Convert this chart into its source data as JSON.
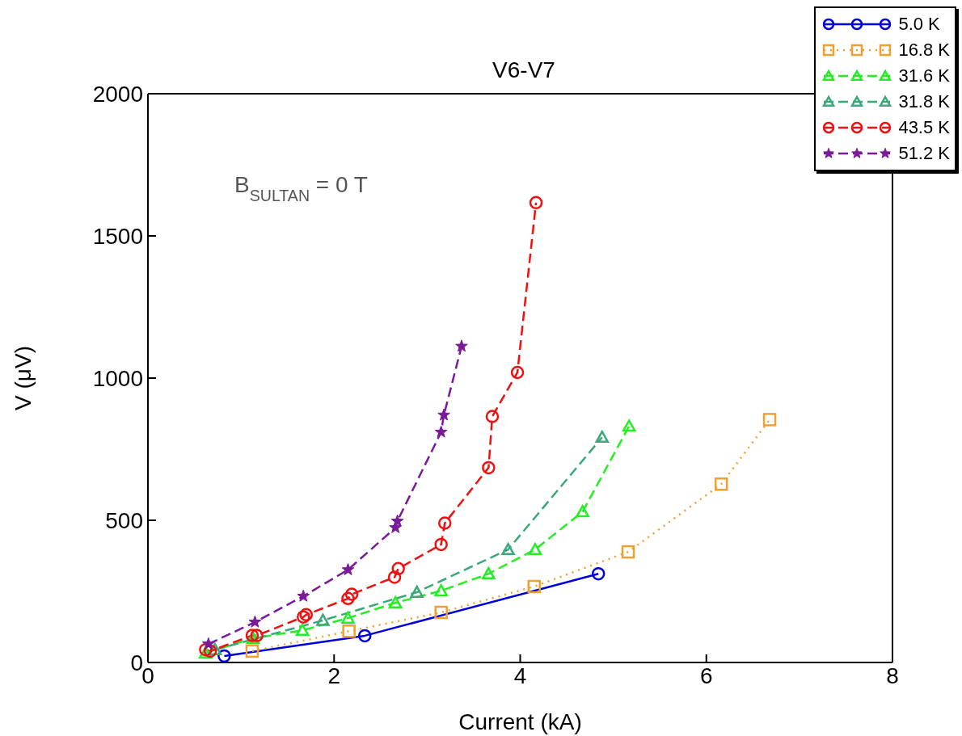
{
  "chart_data": {
    "type": "line",
    "title": "V6-V7",
    "xlabel": "Current (kA)",
    "ylabel": "V (μV)",
    "xlim": [
      0,
      8
    ],
    "xticks": [
      0,
      2,
      4,
      6,
      8
    ],
    "ylim": [
      0,
      2000
    ],
    "yticks": [
      0,
      500,
      1000,
      1500,
      2000
    ],
    "grid": false,
    "legend": "top right",
    "annotations": [
      "B$_{SULTAN}$ = 0 T"
    ],
    "series": [
      {
        "name": "5.0 K",
        "color": "#0000dd",
        "marker": "circle",
        "line_style": "solid",
        "x": [
          0.82,
          2.33,
          4.84
        ],
        "values": [
          23,
          94,
          312
        ]
      },
      {
        "name": "16.8 K",
        "color": "#f0a030",
        "marker": "square",
        "line_style": "dotted",
        "x": [
          1.12,
          2.16,
          3.15,
          4.15,
          5.16,
          6.16,
          6.68
        ],
        "values": [
          40,
          110,
          176,
          267,
          389,
          627,
          854
        ]
      },
      {
        "name": "31.6 K",
        "color": "#22ee22",
        "marker": "triangle",
        "line_style": "dashed",
        "x": [
          0.62,
          1.13,
          1.66,
          2.15,
          2.66,
          3.15,
          3.66,
          4.16,
          4.67,
          5.17
        ],
        "values": [
          34,
          85,
          113,
          156,
          210,
          252,
          312,
          397,
          530,
          831
        ]
      },
      {
        "name": "31.8 K",
        "color": "#3aa878",
        "marker": "triangle",
        "line_style": "dashed",
        "x": [
          0.72,
          1.88,
          2.89,
          3.87,
          4.88
        ],
        "values": [
          45,
          148,
          247,
          397,
          792
        ]
      },
      {
        "name": "43.5 K",
        "color": "#ee1111",
        "marker": "circle",
        "line_style": "dashed",
        "x": [
          0.62,
          0.67,
          1.12,
          1.17,
          1.67,
          1.7,
          2.15,
          2.19,
          2.65,
          2.69,
          3.15,
          3.19,
          3.66,
          3.7,
          3.97,
          4.17
        ],
        "values": [
          45,
          40,
          95,
          95,
          160,
          168,
          225,
          240,
          300,
          330,
          415,
          490,
          685,
          865,
          1020,
          1617
        ]
      },
      {
        "name": "51.2 K",
        "color": "#7a1a9a",
        "marker": "star",
        "line_style": "dashed",
        "x": [
          0.65,
          1.15,
          1.67,
          2.15,
          2.66,
          2.68,
          3.15,
          3.18,
          3.37
        ],
        "values": [
          65,
          142,
          233,
          326,
          474,
          497,
          810,
          870,
          1112
        ]
      }
    ]
  }
}
